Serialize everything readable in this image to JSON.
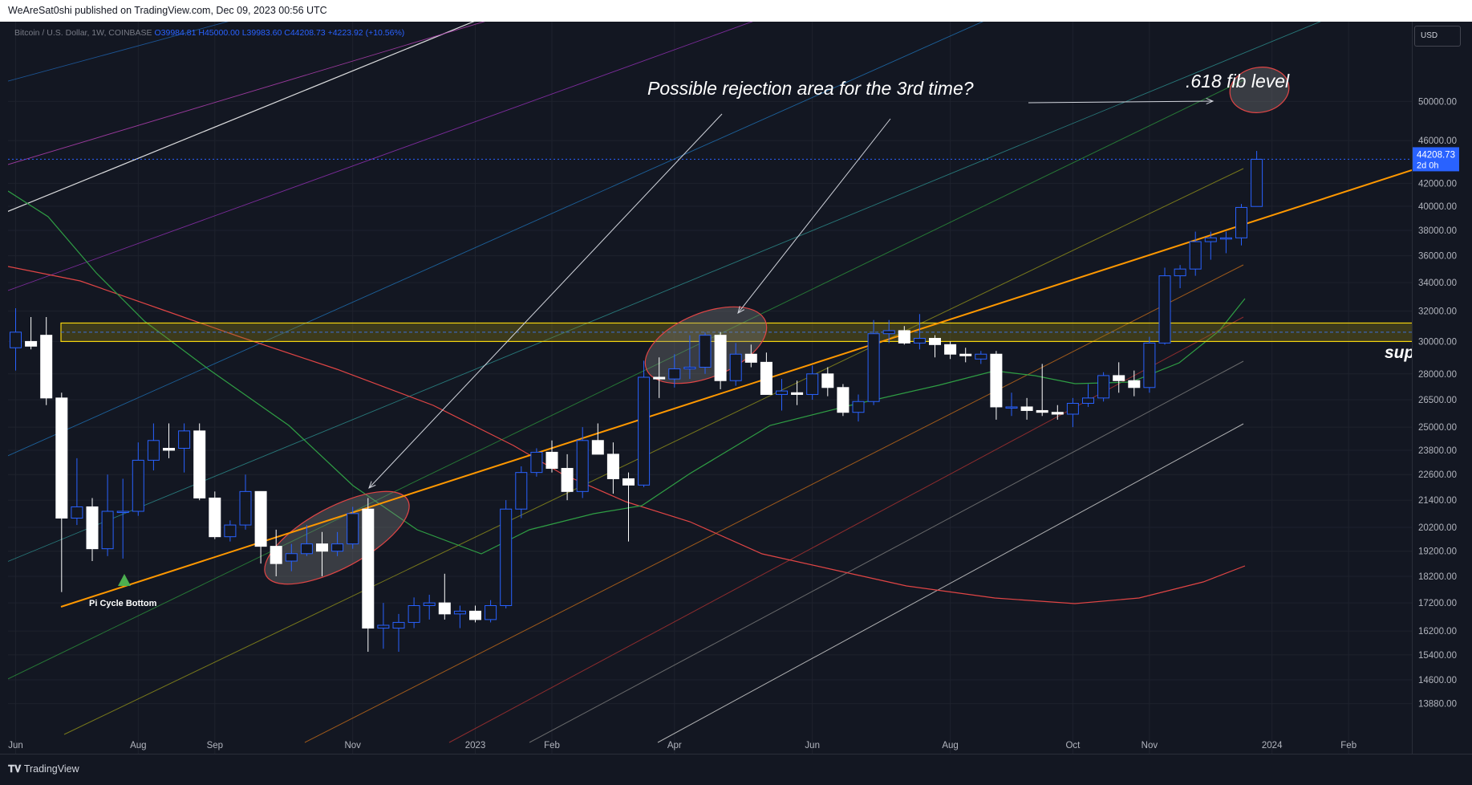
{
  "header": {
    "publisher_line": "WeAreSat0shi published on TradingView.com, Dec 09, 2023 00:56 UTC"
  },
  "legend": {
    "symbol": "Bitcoin / U.S. Dollar, 1W, COINBASE",
    "open": "O39984.81",
    "high": "H45000.00",
    "low": "L39983.60",
    "close": "C44208.73",
    "change": "+4223.92 (+10.56%)"
  },
  "currency_button": "USD",
  "last_price": {
    "value": "44208.73",
    "countdown": "2d 0h"
  },
  "footer": {
    "brand": "TradingView"
  },
  "colors": {
    "background": "#131722",
    "grid": "#1e222d",
    "candle_up": "#131722",
    "candle_up_border": "#2962ff",
    "candle_down": "#ffffff",
    "support_band": "#f5d40e",
    "trendline": "#ff9800",
    "last_price": "#2962ff"
  },
  "chart_data": {
    "type": "candlestick",
    "symbol": "Bitcoin / U.S. Dollar",
    "interval": "1W",
    "yscale": "log",
    "ylim": [
      13000,
      56000
    ],
    "y_ticks": [
      50000,
      46000,
      42000,
      40000,
      38000,
      36000,
      34000,
      32000,
      30000,
      28000,
      26500,
      25000,
      23800,
      22600,
      21400,
      20200,
      19200,
      18200,
      17200,
      16200,
      15400,
      14600,
      13880
    ],
    "x_ticks": [
      {
        "label": "Jun",
        "i": 0
      },
      {
        "label": "Aug",
        "i": 8
      },
      {
        "label": "Sep",
        "i": 13
      },
      {
        "label": "Nov",
        "i": 22
      },
      {
        "label": "2023",
        "i": 30
      },
      {
        "label": "Feb",
        "i": 35
      },
      {
        "label": "Apr",
        "i": 43
      },
      {
        "label": "Jun",
        "i": 52
      },
      {
        "label": "Aug",
        "i": 61
      },
      {
        "label": "Oct",
        "i": 69
      },
      {
        "label": "Nov",
        "i": 74
      },
      {
        "label": "2024",
        "i": 82
      },
      {
        "label": "Feb",
        "i": 87
      }
    ],
    "candles": [
      {
        "o": 29600,
        "h": 32200,
        "l": 28200,
        "c": 30600
      },
      {
        "o": 30000,
        "h": 31600,
        "l": 29500,
        "c": 29700
      },
      {
        "o": 30400,
        "h": 31600,
        "l": 26200,
        "c": 26600
      },
      {
        "o": 26600,
        "h": 26900,
        "l": 17600,
        "c": 20600
      },
      {
        "o": 20600,
        "h": 23400,
        "l": 20300,
        "c": 21100
      },
      {
        "o": 21100,
        "h": 21500,
        "l": 18800,
        "c": 19300
      },
      {
        "o": 19300,
        "h": 22600,
        "l": 19000,
        "c": 20900
      },
      {
        "o": 20900,
        "h": 22400,
        "l": 18900,
        "c": 20900
      },
      {
        "o": 20900,
        "h": 24200,
        "l": 20700,
        "c": 23300
      },
      {
        "o": 23300,
        "h": 25200,
        "l": 22800,
        "c": 24300
      },
      {
        "o": 23900,
        "h": 25200,
        "l": 23400,
        "c": 23800
      },
      {
        "o": 23900,
        "h": 25200,
        "l": 22700,
        "c": 24800
      },
      {
        "o": 24800,
        "h": 25200,
        "l": 21400,
        "c": 21500
      },
      {
        "o": 21500,
        "h": 21800,
        "l": 19700,
        "c": 19800
      },
      {
        "o": 19800,
        "h": 20500,
        "l": 19600,
        "c": 20300
      },
      {
        "o": 20300,
        "h": 22600,
        "l": 20100,
        "c": 21800
      },
      {
        "o": 21800,
        "h": 21800,
        "l": 18700,
        "c": 19400
      },
      {
        "o": 19400,
        "h": 20100,
        "l": 18200,
        "c": 18700
      },
      {
        "o": 18800,
        "h": 19500,
        "l": 18400,
        "c": 19100
      },
      {
        "o": 19100,
        "h": 20300,
        "l": 19000,
        "c": 19500
      },
      {
        "o": 19500,
        "h": 20000,
        "l": 18200,
        "c": 19200
      },
      {
        "o": 19200,
        "h": 20000,
        "l": 19000,
        "c": 19500
      },
      {
        "o": 19500,
        "h": 21100,
        "l": 19300,
        "c": 20800
      },
      {
        "o": 21000,
        "h": 21500,
        "l": 15500,
        "c": 16300
      },
      {
        "o": 16300,
        "h": 17200,
        "l": 15600,
        "c": 16400
      },
      {
        "o": 16300,
        "h": 16800,
        "l": 15500,
        "c": 16500
      },
      {
        "o": 16500,
        "h": 17400,
        "l": 16300,
        "c": 17100
      },
      {
        "o": 17100,
        "h": 17500,
        "l": 16600,
        "c": 17200
      },
      {
        "o": 17200,
        "h": 18300,
        "l": 16600,
        "c": 16800
      },
      {
        "o": 16800,
        "h": 17100,
        "l": 16300,
        "c": 16900
      },
      {
        "o": 16900,
        "h": 17100,
        "l": 16500,
        "c": 16600
      },
      {
        "o": 16600,
        "h": 17300,
        "l": 16500,
        "c": 17100
      },
      {
        "o": 17100,
        "h": 21400,
        "l": 17000,
        "c": 21000
      },
      {
        "o": 21000,
        "h": 23000,
        "l": 20600,
        "c": 22700
      },
      {
        "o": 22700,
        "h": 23900,
        "l": 22500,
        "c": 23700
      },
      {
        "o": 23700,
        "h": 24300,
        "l": 22700,
        "c": 22900
      },
      {
        "o": 22900,
        "h": 23600,
        "l": 21400,
        "c": 21800
      },
      {
        "o": 21800,
        "h": 25000,
        "l": 21500,
        "c": 24300
      },
      {
        "o": 24300,
        "h": 25200,
        "l": 23600,
        "c": 23600
      },
      {
        "o": 23600,
        "h": 24200,
        "l": 21700,
        "c": 22400
      },
      {
        "o": 22400,
        "h": 22700,
        "l": 19600,
        "c": 22100
      },
      {
        "o": 22100,
        "h": 28800,
        "l": 22000,
        "c": 27800
      },
      {
        "o": 27800,
        "h": 29000,
        "l": 26600,
        "c": 27700
      },
      {
        "o": 27700,
        "h": 29200,
        "l": 27200,
        "c": 28300
      },
      {
        "o": 28300,
        "h": 30400,
        "l": 27700,
        "c": 28400
      },
      {
        "o": 28400,
        "h": 30600,
        "l": 28000,
        "c": 30400
      },
      {
        "o": 30400,
        "h": 30600,
        "l": 27100,
        "c": 27600
      },
      {
        "o": 27600,
        "h": 29900,
        "l": 27300,
        "c": 29200
      },
      {
        "o": 29200,
        "h": 29800,
        "l": 28400,
        "c": 28700
      },
      {
        "o": 28700,
        "h": 29300,
        "l": 26800,
        "c": 26800
      },
      {
        "o": 26800,
        "h": 27700,
        "l": 25900,
        "c": 27000
      },
      {
        "o": 26900,
        "h": 27600,
        "l": 26200,
        "c": 26800
      },
      {
        "o": 26800,
        "h": 28500,
        "l": 26500,
        "c": 28000
      },
      {
        "o": 28000,
        "h": 28400,
        "l": 26700,
        "c": 27200
      },
      {
        "o": 27200,
        "h": 27400,
        "l": 25600,
        "c": 25800
      },
      {
        "o": 25800,
        "h": 26800,
        "l": 25300,
        "c": 26400
      },
      {
        "o": 26400,
        "h": 31400,
        "l": 26200,
        "c": 30500
      },
      {
        "o": 30500,
        "h": 31400,
        "l": 29900,
        "c": 30700
      },
      {
        "o": 30700,
        "h": 31000,
        "l": 29800,
        "c": 29900
      },
      {
        "o": 29900,
        "h": 31800,
        "l": 29500,
        "c": 30200
      },
      {
        "o": 30200,
        "h": 30400,
        "l": 29000,
        "c": 29800
      },
      {
        "o": 29800,
        "h": 30000,
        "l": 28900,
        "c": 29200
      },
      {
        "o": 29200,
        "h": 29600,
        "l": 28700,
        "c": 29100
      },
      {
        "o": 28900,
        "h": 29400,
        "l": 28600,
        "c": 29200
      },
      {
        "o": 29200,
        "h": 29400,
        "l": 25400,
        "c": 26100
      },
      {
        "o": 26100,
        "h": 26900,
        "l": 25600,
        "c": 26100
      },
      {
        "o": 26100,
        "h": 26600,
        "l": 25400,
        "c": 25900
      },
      {
        "o": 25900,
        "h": 28600,
        "l": 25600,
        "c": 25800
      },
      {
        "o": 25800,
        "h": 26200,
        "l": 25400,
        "c": 25700
      },
      {
        "o": 25700,
        "h": 26600,
        "l": 25000,
        "c": 26300
      },
      {
        "o": 26300,
        "h": 27400,
        "l": 26100,
        "c": 26600
      },
      {
        "o": 26600,
        "h": 28100,
        "l": 26400,
        "c": 27900
      },
      {
        "o": 27900,
        "h": 28700,
        "l": 26900,
        "c": 27600
      },
      {
        "o": 27600,
        "h": 28200,
        "l": 26700,
        "c": 27200
      },
      {
        "o": 27200,
        "h": 30300,
        "l": 26900,
        "c": 29900
      },
      {
        "o": 29900,
        "h": 35100,
        "l": 29800,
        "c": 34500
      },
      {
        "o": 34500,
        "h": 35300,
        "l": 33600,
        "c": 35000
      },
      {
        "o": 35000,
        "h": 37900,
        "l": 34500,
        "c": 37100
      },
      {
        "o": 37100,
        "h": 37900,
        "l": 35700,
        "c": 37400
      },
      {
        "o": 37400,
        "h": 37900,
        "l": 36200,
        "c": 37400
      },
      {
        "o": 37400,
        "h": 40200,
        "l": 36800,
        "c": 39900
      },
      {
        "o": 39985,
        "h": 45000,
        "l": 39984,
        "c": 44209
      }
    ],
    "annotations": [
      {
        "text": "Possible rejection area for the 3rd time?",
        "type": "callout"
      },
      {
        "text": ".618 fib level",
        "type": "callout"
      },
      {
        "text": "Pi Cycle Bottom",
        "type": "marker"
      },
      {
        "text": "sup",
        "type": "label_cut_off"
      }
    ],
    "support_zone": [
      30000,
      31200
    ]
  }
}
